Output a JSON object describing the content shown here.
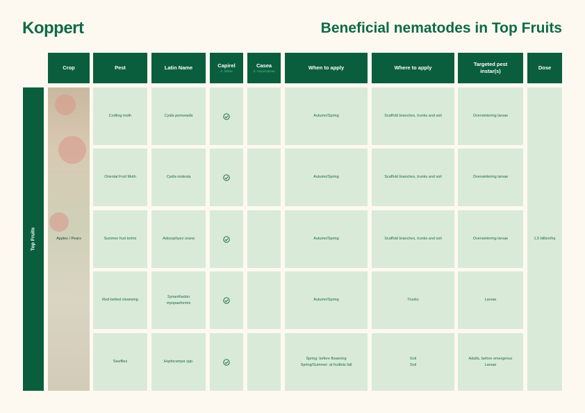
{
  "logo": "Koppert",
  "title": "Beneficial nematodes in Top Fruits",
  "headers": {
    "crop": "Crop",
    "pest": "Pest",
    "latin": "Latin Name",
    "capirel": "Capirel",
    "capirel_sub": "S. feltiae",
    "casea": "Casea",
    "casea_sub": "S. carpocapsae",
    "when": "When to apply",
    "where": "Where to apply",
    "instar": "Targeted pest instar(s)",
    "dose": "Dose"
  },
  "category": "Top Fruits",
  "crop": "Apples / Pears",
  "dose": "1,5 billion/ha",
  "rows": [
    {
      "pest": "Codling moth",
      "latin": "Cydia pomonella",
      "capirel": true,
      "casea": false,
      "when": "Autumn/Spring",
      "where": "Scaffold branches, trunks and soil",
      "instar": "Overwintering larvae"
    },
    {
      "pest": "Oriental Fruit Moth",
      "latin": "Cydia molesta",
      "capirel": true,
      "casea": false,
      "when": "Autumn/Spring",
      "where": "Scaffold branches, trunks and soil",
      "instar": "Overwintering larvae"
    },
    {
      "pest": "Summer fruit tortrix",
      "latin": "Adoxophyes orana",
      "capirel": true,
      "casea": false,
      "when": "Autumn/Spring",
      "where": "Scaffold branches, trunks and soil",
      "instar": "Overwintering larvae"
    },
    {
      "pest": "Red-belted clearwing",
      "latin": "Synanthedon myopaeformis",
      "capirel": true,
      "casea": false,
      "when": "Autumn/Spring",
      "where": "Trunks",
      "instar": "Larvae"
    },
    {
      "pest": "Sawflies",
      "latin": "Hoplocampa spp.",
      "capirel": true,
      "casea": false,
      "when": "Spring: before flowering\nSpring/Summer: at fruitlets fall",
      "where": "Soil\nSoil",
      "instar": "Adults, before emergence\nLarvae"
    }
  ]
}
